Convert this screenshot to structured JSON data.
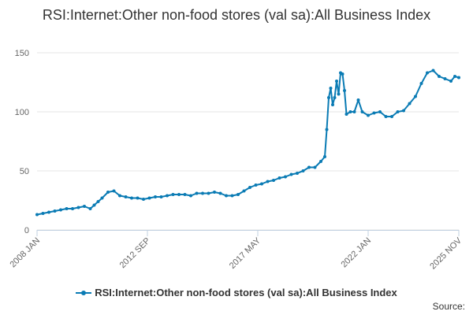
{
  "chart_data": {
    "type": "line",
    "title": "RSI:Internet:Other non-food stores (val sa):All Business Index",
    "xlabel": "",
    "ylabel": "",
    "ylim": [
      0,
      150
    ],
    "y_ticks": [
      0,
      50,
      100,
      150
    ],
    "x_tick_labels": [
      "2008 JAN",
      "2012 SEP",
      "2017 MAY",
      "2022 JAN",
      "2025 NOV"
    ],
    "grid": true,
    "legend_position": "bottom",
    "color": "#0a7bb4",
    "series": [
      {
        "name": "RSI:Internet:Other non-food stores (val sa):All Business Index",
        "x": [
          "2008-01",
          "2008-04",
          "2008-07",
          "2008-10",
          "2009-01",
          "2009-04",
          "2009-07",
          "2009-10",
          "2010-01",
          "2010-04",
          "2010-06",
          "2010-08",
          "2010-10",
          "2011-01",
          "2011-04",
          "2011-07",
          "2011-10",
          "2012-01",
          "2012-04",
          "2012-07",
          "2012-10",
          "2013-01",
          "2013-04",
          "2013-07",
          "2013-10",
          "2014-01",
          "2014-04",
          "2014-07",
          "2014-10",
          "2015-01",
          "2015-04",
          "2015-07",
          "2015-10",
          "2016-01",
          "2016-04",
          "2016-07",
          "2016-10",
          "2017-01",
          "2017-04",
          "2017-07",
          "2017-10",
          "2018-01",
          "2018-04",
          "2018-07",
          "2018-10",
          "2019-01",
          "2019-04",
          "2019-07",
          "2019-10",
          "2020-01",
          "2020-03",
          "2020-04",
          "2020-05",
          "2020-06",
          "2020-07",
          "2020-08",
          "2020-09",
          "2020-10",
          "2020-11",
          "2020-12",
          "2021-01",
          "2021-02",
          "2021-04",
          "2021-06",
          "2021-08",
          "2021-10",
          "2022-01",
          "2022-04",
          "2022-07",
          "2022-10",
          "2023-01",
          "2023-04",
          "2023-07",
          "2023-10",
          "2024-01",
          "2024-04",
          "2024-07",
          "2024-10",
          "2025-01",
          "2025-04",
          "2025-07",
          "2025-09",
          "2025-11"
        ],
        "values": [
          13,
          14,
          15,
          16,
          17,
          18,
          18,
          19,
          20,
          18,
          21,
          24,
          27,
          32,
          33,
          29,
          28,
          27,
          27,
          26,
          27,
          28,
          28,
          29,
          30,
          30,
          30,
          29,
          31,
          31,
          31,
          32,
          31,
          29,
          29,
          30,
          33,
          36,
          38,
          39,
          41,
          42,
          44,
          45,
          47,
          48,
          50,
          53,
          53,
          58,
          62,
          85,
          112,
          120,
          106,
          112,
          126,
          115,
          133,
          132,
          118,
          98,
          100,
          100,
          110,
          100,
          97,
          99,
          100,
          96,
          96,
          100,
          101,
          107,
          113,
          124,
          133,
          135,
          130,
          128,
          126,
          130,
          129
        ]
      }
    ]
  },
  "legend": {
    "label": "RSI:Internet:Other non-food stores (val sa):All Business Index"
  },
  "footer": {
    "source": "Source:"
  }
}
